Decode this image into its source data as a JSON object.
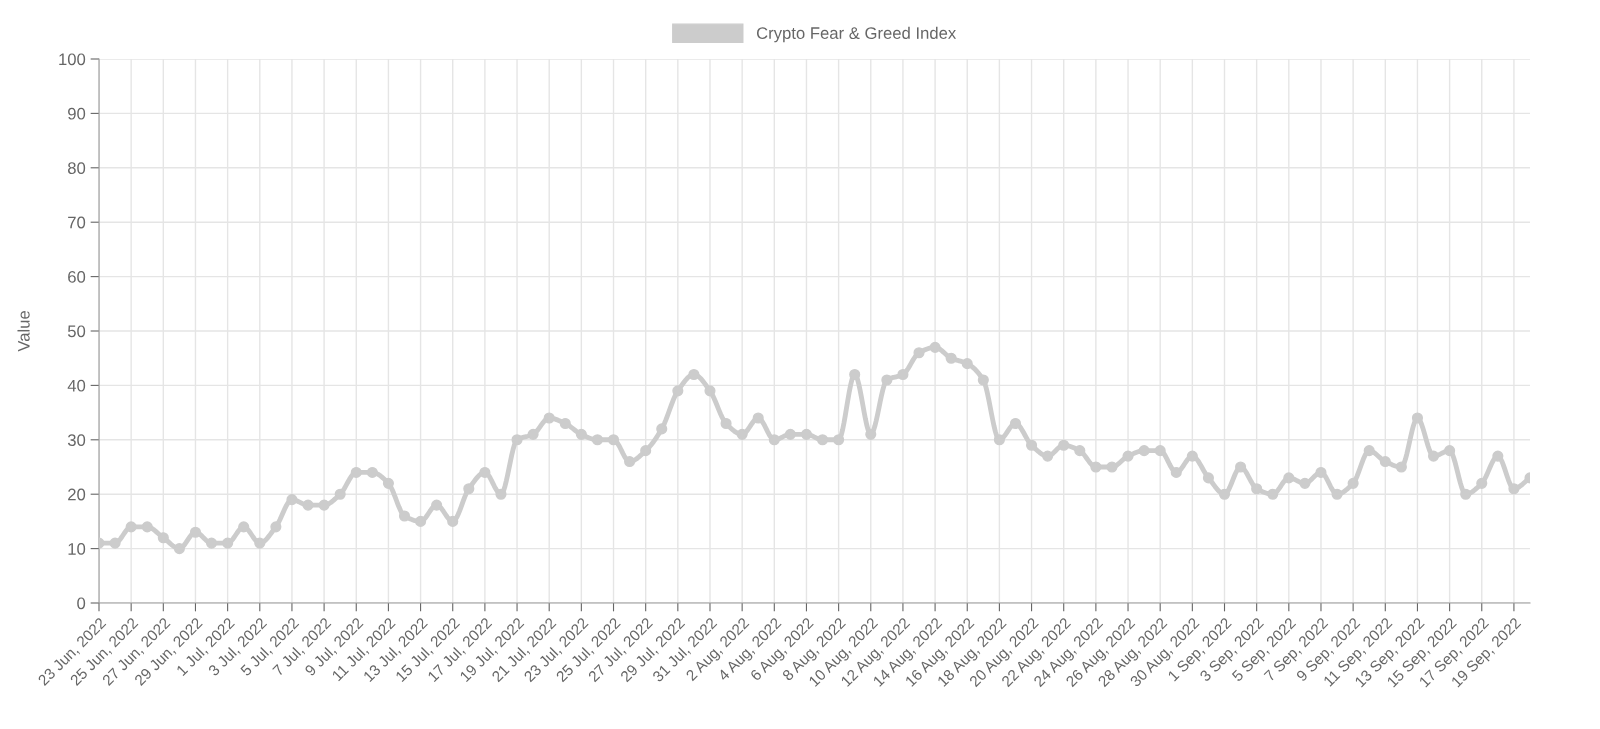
{
  "chart_data": {
    "type": "line",
    "ylabel": "Value",
    "categories": [
      "23 Jun, 2022",
      null,
      "25 Jun, 2022",
      null,
      "27 Jun, 2022",
      null,
      "29 Jun, 2022",
      null,
      "1 Jul, 2022",
      null,
      "3 Jul, 2022",
      null,
      "5 Jul, 2022",
      null,
      "7 Jul, 2022",
      null,
      "9 Jul, 2022",
      null,
      "11 Jul, 2022",
      null,
      "13 Jul, 2022",
      null,
      "15 Jul, 2022",
      null,
      "17 Jul, 2022",
      null,
      "19 Jul, 2022",
      null,
      "21 Jul, 2022",
      null,
      "23 Jul, 2022",
      null,
      "25 Jul, 2022",
      null,
      "27 Jul, 2022",
      null,
      "29 Jul, 2022",
      null,
      "31 Jul, 2022",
      null,
      "2 Aug, 2022",
      null,
      "4 Aug, 2022",
      null,
      "6 Aug, 2022",
      null,
      "8 Aug, 2022",
      null,
      "10 Aug, 2022",
      null,
      "12 Aug, 2022",
      null,
      "14 Aug, 2022",
      null,
      "16 Aug, 2022",
      null,
      "18 Aug, 2022",
      null,
      "20 Aug, 2022",
      null,
      "22 Aug, 2022",
      null,
      "24 Aug, 2022",
      null,
      "26 Aug, 2022",
      null,
      "28 Aug, 2022",
      null,
      "30 Aug, 2022",
      null,
      "1 Sep, 2022",
      null,
      "3 Sep, 2022",
      null,
      "5 Sep, 2022",
      null,
      "7 Sep, 2022",
      null,
      "9 Sep, 2022",
      null,
      "11 Sep, 2022",
      null,
      "13 Sep, 2022",
      null,
      "15 Sep, 2022",
      null,
      "17 Sep, 2022",
      null,
      "19 Sep, 2022",
      null
    ],
    "series": [
      {
        "name": "Crypto Fear & Greed Index",
        "color": "#cccccc",
        "values": [
          11,
          11,
          14,
          14,
          12,
          10,
          13,
          11,
          11,
          14,
          11,
          14,
          19,
          18,
          18,
          20,
          24,
          24,
          22,
          16,
          15,
          18,
          15,
          21,
          24,
          20,
          30,
          31,
          34,
          33,
          31,
          30,
          30,
          26,
          28,
          32,
          39,
          42,
          39,
          33,
          31,
          34,
          30,
          31,
          31,
          30,
          30,
          42,
          31,
          41,
          42,
          46,
          47,
          45,
          44,
          41,
          30,
          33,
          29,
          27,
          29,
          28,
          25,
          25,
          27,
          28,
          28,
          24,
          27,
          23,
          20,
          25,
          21,
          20,
          23,
          22,
          24,
          20,
          22,
          28,
          26,
          25,
          34,
          27,
          28,
          20,
          22,
          27,
          21,
          23
        ]
      }
    ],
    "ylim": [
      0,
      100
    ],
    "yticks": [
      0,
      10,
      20,
      30,
      40,
      50,
      60,
      70,
      80,
      90,
      100
    ],
    "grid": true,
    "legend": "top",
    "marker": "circle",
    "line_style": "solid"
  }
}
